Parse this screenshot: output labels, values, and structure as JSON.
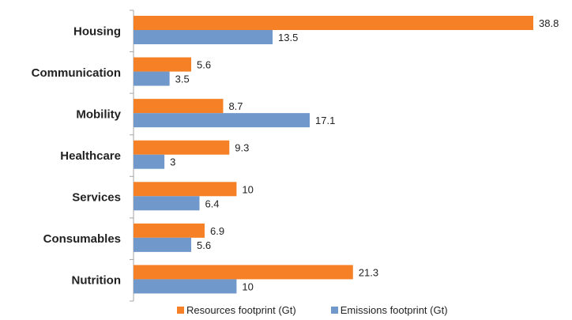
{
  "chart_data": {
    "type": "bar",
    "orientation": "horizontal",
    "categories": [
      "Housing",
      "Communication",
      "Mobility",
      "Healthcare",
      "Services",
      "Consumables",
      "Nutrition"
    ],
    "series": [
      {
        "name": "Resources footprint (Gt)",
        "color": "#F58025",
        "values": [
          38.8,
          5.6,
          8.7,
          9.3,
          10,
          6.9,
          21.3
        ]
      },
      {
        "name": "Emissions footprint (Gt)",
        "color": "#7198CA",
        "values": [
          13.5,
          3.5,
          17.1,
          3,
          6.4,
          5.6,
          10
        ]
      }
    ],
    "xlim": [
      0,
      40
    ],
    "grid": false,
    "legend_position": "bottom"
  }
}
